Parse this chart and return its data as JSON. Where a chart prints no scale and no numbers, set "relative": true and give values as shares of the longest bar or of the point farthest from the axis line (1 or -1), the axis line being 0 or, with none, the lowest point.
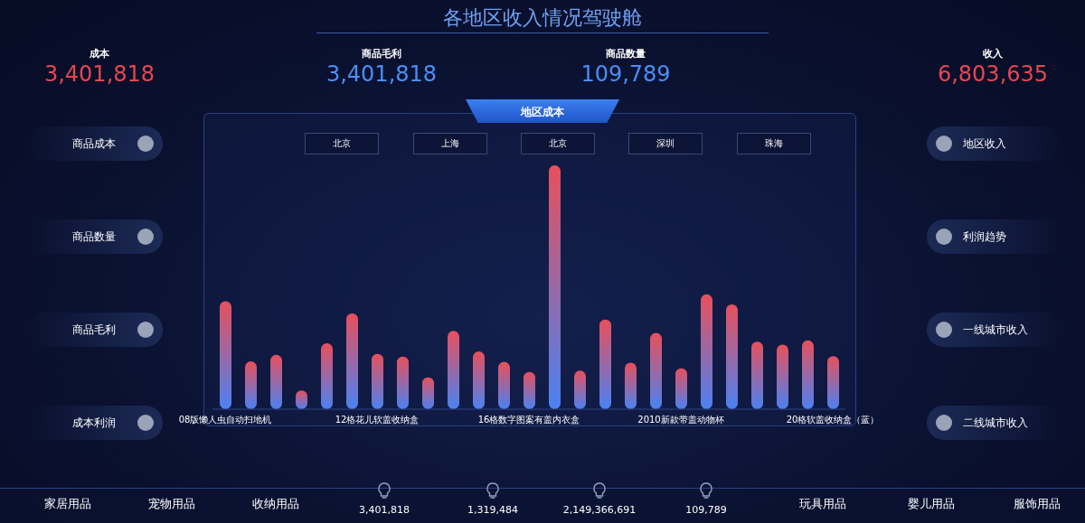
{
  "chart_data": {
    "type": "bar",
    "title": "各地区收入情况驾驶舱",
    "subtitle": "地区成本",
    "relative": true,
    "categories": [
      "08版懒人虫自动扫地机",
      null,
      null,
      null,
      null,
      null,
      "12格花儿软盖收纳盒",
      null,
      null,
      null,
      null,
      null,
      "16格数字图案有盖内衣盒",
      null,
      null,
      null,
      null,
      null,
      "2010新款带盖动物杯",
      null,
      null,
      null,
      null,
      null,
      "20格软盖收纳盒（蓝）"
    ],
    "series": [
      {
        "color": "#e8505b",
        "values": [
          0.443,
          0.196,
          0.223,
          0.077,
          0.27,
          0.393,
          0.227,
          0.216,
          0.131,
          0.321,
          0.237,
          0.194,
          0.153,
          1,
          0.158,
          0.368,
          0.191,
          0.313,
          0.168,
          0.471,
          0.43,
          0.277,
          0.265,
          0.282,
          0.218
        ]
      }
    ],
    "grid": false,
    "legend": false,
    "annotations": [
      "成本",
      "3,401,818",
      "商品毛利",
      "3,401,818",
      "商品数量",
      "109,789",
      "收入",
      "6,803,635",
      "商品成本",
      "商品数量",
      "商品毛利",
      "成本利润",
      "地区收入",
      "利润趋势",
      "一线城市收入",
      "二线城市收入",
      "北京",
      "上海",
      "北京",
      "深圳",
      "珠海",
      "家居用品",
      "宠物用品",
      "收纳用品",
      "3,401,818",
      "1,319,484",
      "2,149,366,691",
      "109,789",
      "玩具用品",
      "婴儿用品",
      "服饰用品"
    ]
  }
}
